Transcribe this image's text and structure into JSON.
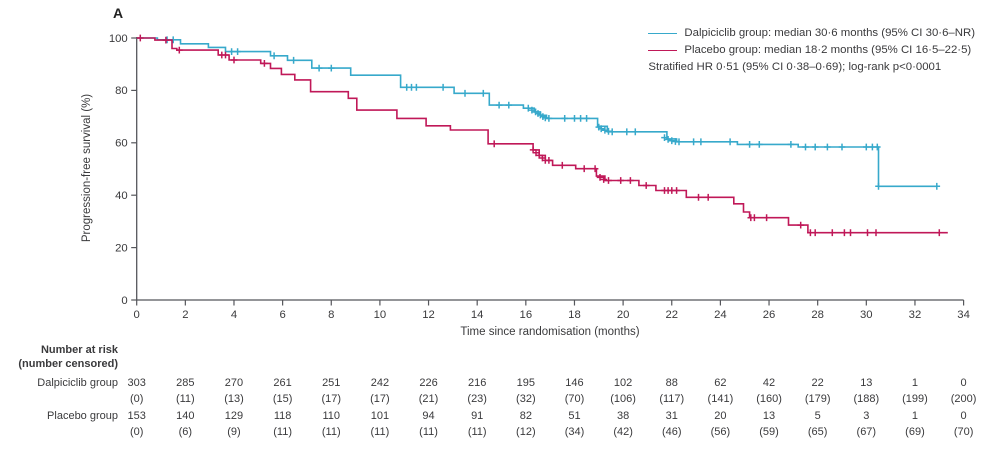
{
  "panel_label": "A",
  "legend": {
    "items": [
      {
        "name": "Dalpiciclib group",
        "label": "Dalpiciclib group: median 30·6 months (95% CI 30·6–NR)",
        "color": "#37a9cb"
      },
      {
        "name": "Placebo group",
        "label": "Placebo group: median 18·2 months (95% CI 16·5–22·5)",
        "color": "#c01858"
      }
    ],
    "note": "Stratified HR 0·51 (95% CI 0·38–0·69); log-rank p<0·0001"
  },
  "chart_data": {
    "type": "line",
    "variant": "kaplan-meier-step",
    "title": "",
    "xlabel": "Time since randomisation (months)",
    "ylabel": "Progression-free survival (%)",
    "xlim": [
      0,
      34
    ],
    "ylim": [
      0,
      100
    ],
    "xticks": [
      0,
      2,
      4,
      6,
      8,
      10,
      12,
      14,
      16,
      18,
      20,
      22,
      24,
      26,
      28,
      30,
      32,
      34
    ],
    "yticks": [
      0,
      20,
      40,
      60,
      80,
      100
    ],
    "grid": false,
    "legend_position": "top-right",
    "axis_color": "#55565b",
    "series": [
      {
        "name": "Dalpiciclib group",
        "color": "#37a9cb",
        "median_months": "30·6",
        "ci": "30·6–NR",
        "end_time": 32.9,
        "steps": [
          [
            0,
            100
          ],
          [
            0.85,
            99.3
          ],
          [
            1.8,
            97.8
          ],
          [
            2.95,
            96.4
          ],
          [
            3.65,
            94.8
          ],
          [
            5.5,
            93.2
          ],
          [
            6.2,
            91.5
          ],
          [
            7.2,
            88.5
          ],
          [
            8.8,
            85.8
          ],
          [
            10.85,
            81.2
          ],
          [
            13.05,
            78.9
          ],
          [
            14.5,
            74.4
          ],
          [
            15.9,
            73.2
          ],
          [
            16.35,
            71.8
          ],
          [
            16.6,
            70.5
          ],
          [
            16.85,
            69.3
          ],
          [
            18.95,
            66.3
          ],
          [
            19.35,
            64.2
          ],
          [
            21.8,
            61.5
          ],
          [
            22.2,
            60.4
          ],
          [
            24.7,
            59.4
          ],
          [
            27.2,
            58.4
          ],
          [
            30.5,
            43.4
          ]
        ],
        "censors": [
          [
            1.25,
            99.3
          ],
          [
            1.5,
            99.3
          ],
          [
            3.9,
            94.8
          ],
          [
            4.15,
            94.8
          ],
          [
            5.65,
            93.2
          ],
          [
            6.45,
            91.5
          ],
          [
            7.5,
            88.5
          ],
          [
            8.0,
            88.5
          ],
          [
            11.1,
            81.2
          ],
          [
            11.3,
            81.2
          ],
          [
            11.5,
            81.2
          ],
          [
            12.6,
            81.2
          ],
          [
            13.5,
            78.9
          ],
          [
            14.25,
            78.9
          ],
          [
            14.9,
            74.4
          ],
          [
            15.3,
            74.4
          ],
          [
            16.1,
            73.2
          ],
          [
            16.25,
            72.5
          ],
          [
            16.4,
            71.8
          ],
          [
            16.5,
            71.2
          ],
          [
            16.6,
            70.6
          ],
          [
            16.7,
            70.0
          ],
          [
            16.8,
            69.5
          ],
          [
            16.95,
            69.3
          ],
          [
            17.6,
            69.3
          ],
          [
            18.0,
            69.3
          ],
          [
            18.25,
            69.3
          ],
          [
            18.5,
            69.3
          ],
          [
            19.0,
            66.0
          ],
          [
            19.1,
            65.4
          ],
          [
            19.25,
            64.8
          ],
          [
            19.4,
            64.4
          ],
          [
            19.55,
            64.2
          ],
          [
            20.15,
            64.2
          ],
          [
            20.5,
            64.2
          ],
          [
            21.7,
            62.0
          ],
          [
            21.85,
            61.3
          ],
          [
            22.0,
            60.8
          ],
          [
            22.15,
            60.5
          ],
          [
            22.3,
            60.4
          ],
          [
            22.9,
            60.4
          ],
          [
            23.2,
            60.4
          ],
          [
            24.4,
            60.4
          ],
          [
            25.2,
            59.4
          ],
          [
            25.6,
            59.4
          ],
          [
            26.9,
            59.4
          ],
          [
            27.5,
            58.4
          ],
          [
            27.9,
            58.4
          ],
          [
            28.4,
            58.4
          ],
          [
            29.0,
            58.4
          ],
          [
            30.0,
            58.4
          ],
          [
            30.25,
            58.4
          ],
          [
            30.45,
            58.4
          ],
          [
            30.5,
            43.4
          ],
          [
            32.9,
            43.4
          ]
        ]
      },
      {
        "name": "Placebo group",
        "color": "#c01858",
        "median_months": "18·2",
        "ci": "16·5–22·5",
        "end_time": 33.35,
        "steps": [
          [
            0,
            100
          ],
          [
            0.75,
            99.2
          ],
          [
            1.45,
            96.0
          ],
          [
            1.65,
            95.4
          ],
          [
            3.35,
            93.5
          ],
          [
            3.8,
            91.6
          ],
          [
            5.1,
            90.3
          ],
          [
            5.5,
            88.4
          ],
          [
            5.95,
            86.1
          ],
          [
            6.5,
            84.0
          ],
          [
            7.15,
            79.5
          ],
          [
            8.7,
            77.0
          ],
          [
            9.05,
            72.5
          ],
          [
            10.7,
            69.3
          ],
          [
            11.9,
            66.5
          ],
          [
            12.9,
            64.9
          ],
          [
            14.45,
            59.6
          ],
          [
            16.3,
            57.3
          ],
          [
            16.55,
            55.2
          ],
          [
            16.8,
            53.3
          ],
          [
            17.1,
            51.4
          ],
          [
            18.05,
            50.1
          ],
          [
            18.9,
            47.3
          ],
          [
            19.25,
            45.6
          ],
          [
            20.65,
            43.7
          ],
          [
            21.35,
            41.8
          ],
          [
            22.6,
            39.2
          ],
          [
            24.55,
            36.7
          ],
          [
            24.95,
            33.6
          ],
          [
            25.2,
            31.4
          ],
          [
            26.8,
            28.6
          ],
          [
            27.6,
            25.7
          ]
        ],
        "censors": [
          [
            0.15,
            100
          ],
          [
            1.2,
            99.2
          ],
          [
            1.75,
            95.4
          ],
          [
            3.5,
            93.5
          ],
          [
            3.65,
            93.5
          ],
          [
            4.0,
            91.6
          ],
          [
            5.25,
            90.3
          ],
          [
            14.7,
            59.6
          ],
          [
            16.3,
            57.3
          ],
          [
            16.42,
            56.2
          ],
          [
            16.55,
            55.2
          ],
          [
            16.68,
            54.2
          ],
          [
            16.8,
            53.3
          ],
          [
            16.95,
            53.3
          ],
          [
            17.5,
            51.4
          ],
          [
            18.4,
            50.1
          ],
          [
            18.85,
            50.1
          ],
          [
            19.05,
            46.8
          ],
          [
            19.2,
            46.0
          ],
          [
            19.4,
            45.6
          ],
          [
            19.9,
            45.6
          ],
          [
            20.3,
            45.6
          ],
          [
            20.95,
            43.7
          ],
          [
            21.7,
            41.8
          ],
          [
            21.85,
            41.8
          ],
          [
            22.0,
            41.8
          ],
          [
            22.2,
            41.8
          ],
          [
            23.1,
            39.2
          ],
          [
            23.5,
            39.2
          ],
          [
            25.25,
            31.4
          ],
          [
            25.4,
            31.4
          ],
          [
            25.9,
            31.4
          ],
          [
            27.3,
            28.6
          ],
          [
            27.7,
            25.7
          ],
          [
            27.9,
            25.7
          ],
          [
            28.6,
            25.7
          ],
          [
            29.1,
            25.7
          ],
          [
            29.35,
            25.7
          ],
          [
            30.05,
            25.7
          ],
          [
            30.4,
            25.7
          ],
          [
            33.0,
            25.7
          ]
        ]
      }
    ]
  },
  "risk_table": {
    "header_line1": "Number at risk",
    "header_line2": "(number censored)",
    "times": [
      0,
      2,
      4,
      6,
      8,
      10,
      12,
      14,
      16,
      18,
      20,
      22,
      24,
      26,
      28,
      30,
      32,
      34
    ],
    "rows": [
      {
        "label": "Dalpiciclib group",
        "at_risk": [
          303,
          285,
          270,
          261,
          251,
          242,
          226,
          216,
          195,
          146,
          102,
          88,
          62,
          42,
          22,
          13,
          1,
          0
        ],
        "censored": [
          0,
          11,
          13,
          15,
          17,
          17,
          21,
          23,
          32,
          70,
          106,
          117,
          141,
          160,
          179,
          188,
          199,
          200
        ]
      },
      {
        "label": "Placebo group",
        "at_risk": [
          153,
          140,
          129,
          118,
          110,
          101,
          94,
          91,
          82,
          51,
          38,
          31,
          20,
          13,
          5,
          3,
          1,
          0
        ],
        "censored": [
          0,
          6,
          9,
          11,
          11,
          11,
          11,
          11,
          12,
          34,
          42,
          46,
          56,
          59,
          65,
          67,
          69,
          70
        ]
      }
    ]
  }
}
